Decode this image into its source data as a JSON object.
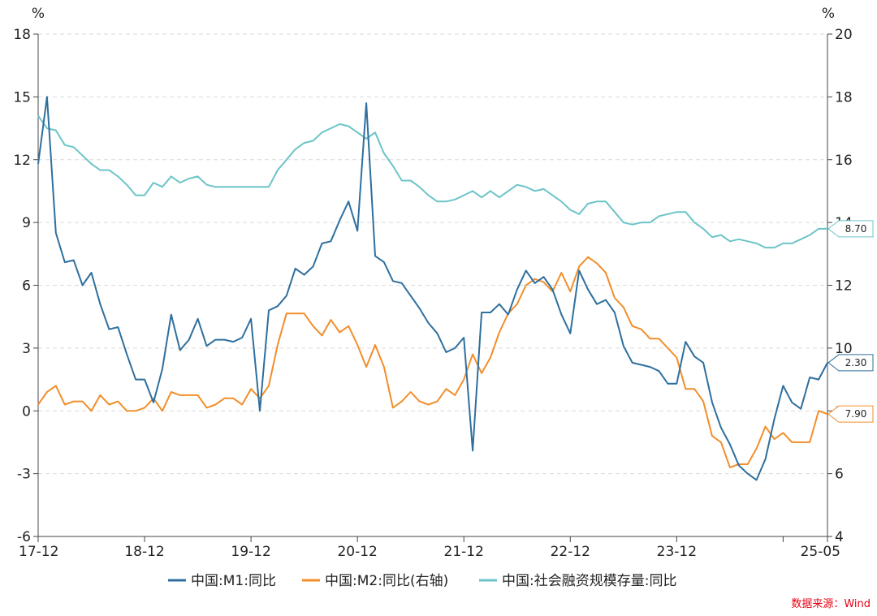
{
  "source": "数据来源：Wind",
  "chart_data": {
    "type": "line",
    "x_tick_labels": [
      "17-12",
      "18-12",
      "19-12",
      "20-12",
      "21-12",
      "22-12",
      "23-12",
      "25-05"
    ],
    "x_range": [
      "2017-12",
      "2025-05"
    ],
    "left_axis": {
      "unit": "%",
      "ylim": [
        -6,
        18
      ],
      "ticks": [
        -6,
        -3,
        0,
        3,
        6,
        9,
        12,
        15,
        18
      ]
    },
    "right_axis": {
      "unit": "%",
      "ylim": [
        4,
        20
      ],
      "ticks": [
        4,
        6,
        8,
        10,
        12,
        14,
        16,
        18,
        20
      ]
    },
    "grid": "horizontal dashed",
    "legend_position": "bottom",
    "series": [
      {
        "name": "中国:M1:同比",
        "axis": "left",
        "color": "#2e6f9e",
        "end_label": "2.30",
        "points": [
          [
            "2017-12",
            11.8
          ],
          [
            "2018-01",
            15.0
          ],
          [
            "2018-02",
            8.5
          ],
          [
            "2018-03",
            7.1
          ],
          [
            "2018-04",
            7.2
          ],
          [
            "2018-05",
            6.0
          ],
          [
            "2018-06",
            6.6
          ],
          [
            "2018-07",
            5.1
          ],
          [
            "2018-08",
            3.9
          ],
          [
            "2018-09",
            4.0
          ],
          [
            "2018-10",
            2.7
          ],
          [
            "2018-11",
            1.5
          ],
          [
            "2018-12",
            1.5
          ],
          [
            "2019-01",
            0.4
          ],
          [
            "2019-02",
            2.0
          ],
          [
            "2019-03",
            4.6
          ],
          [
            "2019-04",
            2.9
          ],
          [
            "2019-05",
            3.4
          ],
          [
            "2019-06",
            4.4
          ],
          [
            "2019-07",
            3.1
          ],
          [
            "2019-08",
            3.4
          ],
          [
            "2019-09",
            3.4
          ],
          [
            "2019-10",
            3.3
          ],
          [
            "2019-11",
            3.5
          ],
          [
            "2019-12",
            4.4
          ],
          [
            "2020-01",
            0.0
          ],
          [
            "2020-02",
            4.8
          ],
          [
            "2020-03",
            5.0
          ],
          [
            "2020-04",
            5.5
          ],
          [
            "2020-05",
            6.8
          ],
          [
            "2020-06",
            6.5
          ],
          [
            "2020-07",
            6.9
          ],
          [
            "2020-08",
            8.0
          ],
          [
            "2020-09",
            8.1
          ],
          [
            "2020-10",
            9.1
          ],
          [
            "2020-11",
            10.0
          ],
          [
            "2020-12",
            8.6
          ],
          [
            "2021-01",
            14.7
          ],
          [
            "2021-02",
            7.4
          ],
          [
            "2021-03",
            7.1
          ],
          [
            "2021-04",
            6.2
          ],
          [
            "2021-05",
            6.1
          ],
          [
            "2021-06",
            5.5
          ],
          [
            "2021-07",
            4.9
          ],
          [
            "2021-08",
            4.2
          ],
          [
            "2021-09",
            3.7
          ],
          [
            "2021-10",
            2.8
          ],
          [
            "2021-11",
            3.0
          ],
          [
            "2021-12",
            3.5
          ],
          [
            "2022-01",
            -1.9
          ],
          [
            "2022-02",
            4.7
          ],
          [
            "2022-03",
            4.7
          ],
          [
            "2022-04",
            5.1
          ],
          [
            "2022-05",
            4.6
          ],
          [
            "2022-06",
            5.8
          ],
          [
            "2022-07",
            6.7
          ],
          [
            "2022-08",
            6.1
          ],
          [
            "2022-09",
            6.4
          ],
          [
            "2022-10",
            5.8
          ],
          [
            "2022-11",
            4.6
          ],
          [
            "2022-12",
            3.7
          ],
          [
            "2023-01",
            6.7
          ],
          [
            "2023-02",
            5.8
          ],
          [
            "2023-03",
            5.1
          ],
          [
            "2023-04",
            5.3
          ],
          [
            "2023-05",
            4.7
          ],
          [
            "2023-06",
            3.1
          ],
          [
            "2023-07",
            2.3
          ],
          [
            "2023-08",
            2.2
          ],
          [
            "2023-09",
            2.1
          ],
          [
            "2023-10",
            1.9
          ],
          [
            "2023-11",
            1.3
          ],
          [
            "2023-12",
            1.3
          ],
          [
            "2024-01",
            3.3
          ],
          [
            "2024-02",
            2.6
          ],
          [
            "2024-03",
            2.3
          ],
          [
            "2024-04",
            0.4
          ],
          [
            "2024-05",
            -0.8
          ],
          [
            "2024-06",
            -1.6
          ],
          [
            "2024-07",
            -2.6
          ],
          [
            "2024-08",
            -3.0
          ],
          [
            "2024-09",
            -3.3
          ],
          [
            "2024-10",
            -2.3
          ],
          [
            "2024-11",
            -0.4
          ],
          [
            "2024-12",
            1.2
          ],
          [
            "2025-01",
            0.4
          ],
          [
            "2025-02",
            0.1
          ],
          [
            "2025-03",
            1.6
          ],
          [
            "2025-04",
            1.5
          ],
          [
            "2025-05",
            2.3
          ]
        ]
      },
      {
        "name": "中国:M2:同比(右轴)",
        "axis": "right",
        "color": "#f28e2b",
        "end_label": "7.90",
        "points": [
          [
            "2017-12",
            8.2
          ],
          [
            "2018-01",
            8.6
          ],
          [
            "2018-02",
            8.8
          ],
          [
            "2018-03",
            8.2
          ],
          [
            "2018-04",
            8.3
          ],
          [
            "2018-05",
            8.3
          ],
          [
            "2018-06",
            8.0
          ],
          [
            "2018-07",
            8.5
          ],
          [
            "2018-08",
            8.2
          ],
          [
            "2018-09",
            8.3
          ],
          [
            "2018-10",
            8.0
          ],
          [
            "2018-11",
            8.0
          ],
          [
            "2018-12",
            8.1
          ],
          [
            "2019-01",
            8.4
          ],
          [
            "2019-02",
            8.0
          ],
          [
            "2019-03",
            8.6
          ],
          [
            "2019-04",
            8.5
          ],
          [
            "2019-05",
            8.5
          ],
          [
            "2019-06",
            8.5
          ],
          [
            "2019-07",
            8.1
          ],
          [
            "2019-08",
            8.2
          ],
          [
            "2019-09",
            8.4
          ],
          [
            "2019-10",
            8.4
          ],
          [
            "2019-11",
            8.2
          ],
          [
            "2019-12",
            8.7
          ],
          [
            "2020-01",
            8.4
          ],
          [
            "2020-02",
            8.8
          ],
          [
            "2020-03",
            10.1
          ],
          [
            "2020-04",
            11.1
          ],
          [
            "2020-05",
            11.1
          ],
          [
            "2020-06",
            11.1
          ],
          [
            "2020-07",
            10.7
          ],
          [
            "2020-08",
            10.4
          ],
          [
            "2020-09",
            10.9
          ],
          [
            "2020-10",
            10.5
          ],
          [
            "2020-11",
            10.7
          ],
          [
            "2020-12",
            10.1
          ],
          [
            "2021-01",
            9.4
          ],
          [
            "2021-02",
            10.1
          ],
          [
            "2021-03",
            9.4
          ],
          [
            "2021-04",
            8.1
          ],
          [
            "2021-05",
            8.3
          ],
          [
            "2021-06",
            8.6
          ],
          [
            "2021-07",
            8.3
          ],
          [
            "2021-08",
            8.2
          ],
          [
            "2021-09",
            8.3
          ],
          [
            "2021-10",
            8.7
          ],
          [
            "2021-11",
            8.5
          ],
          [
            "2021-12",
            9.0
          ],
          [
            "2022-01",
            9.8
          ],
          [
            "2022-02",
            9.2
          ],
          [
            "2022-03",
            9.7
          ],
          [
            "2022-04",
            10.5
          ],
          [
            "2022-05",
            11.1
          ],
          [
            "2022-06",
            11.4
          ],
          [
            "2022-07",
            12.0
          ],
          [
            "2022-08",
            12.2
          ],
          [
            "2022-09",
            12.1
          ],
          [
            "2022-10",
            11.8
          ],
          [
            "2022-11",
            12.4
          ],
          [
            "2022-12",
            11.8
          ],
          [
            "2023-01",
            12.6
          ],
          [
            "2023-02",
            12.9
          ],
          [
            "2023-03",
            12.7
          ],
          [
            "2023-04",
            12.4
          ],
          [
            "2023-05",
            11.6
          ],
          [
            "2023-06",
            11.3
          ],
          [
            "2023-07",
            10.7
          ],
          [
            "2023-08",
            10.6
          ],
          [
            "2023-09",
            10.3
          ],
          [
            "2023-10",
            10.3
          ],
          [
            "2023-11",
            10.0
          ],
          [
            "2023-12",
            9.7
          ],
          [
            "2024-01",
            8.7
          ],
          [
            "2024-02",
            8.7
          ],
          [
            "2024-03",
            8.3
          ],
          [
            "2024-04",
            7.2
          ],
          [
            "2024-05",
            7.0
          ],
          [
            "2024-06",
            6.2
          ],
          [
            "2024-07",
            6.3
          ],
          [
            "2024-08",
            6.3
          ],
          [
            "2024-09",
            6.8
          ],
          [
            "2024-10",
            7.5
          ],
          [
            "2024-11",
            7.1
          ],
          [
            "2024-12",
            7.3
          ],
          [
            "2025-01",
            7.0
          ],
          [
            "2025-02",
            7.0
          ],
          [
            "2025-03",
            7.0
          ],
          [
            "2025-04",
            8.0
          ],
          [
            "2025-05",
            7.9
          ]
        ]
      },
      {
        "name": "中国:社会融资规模存量:同比",
        "axis": "left",
        "color": "#6cc4c8",
        "end_label": "8.70",
        "points": [
          [
            "2017-12",
            14.1
          ],
          [
            "2018-01",
            13.5
          ],
          [
            "2018-02",
            13.4
          ],
          [
            "2018-03",
            12.7
          ],
          [
            "2018-04",
            12.6
          ],
          [
            "2018-05",
            12.2
          ],
          [
            "2018-06",
            11.8
          ],
          [
            "2018-07",
            11.5
          ],
          [
            "2018-08",
            11.5
          ],
          [
            "2018-09",
            11.2
          ],
          [
            "2018-10",
            10.8
          ],
          [
            "2018-11",
            10.3
          ],
          [
            "2018-12",
            10.3
          ],
          [
            "2019-01",
            10.9
          ],
          [
            "2019-02",
            10.7
          ],
          [
            "2019-03",
            11.2
          ],
          [
            "2019-04",
            10.9
          ],
          [
            "2019-05",
            11.1
          ],
          [
            "2019-06",
            11.2
          ],
          [
            "2019-07",
            10.8
          ],
          [
            "2019-08",
            10.7
          ],
          [
            "2019-09",
            10.7
          ],
          [
            "2019-10",
            10.7
          ],
          [
            "2019-11",
            10.7
          ],
          [
            "2019-12",
            10.7
          ],
          [
            "2020-01",
            10.7
          ],
          [
            "2020-02",
            10.7
          ],
          [
            "2020-03",
            11.5
          ],
          [
            "2020-04",
            12.0
          ],
          [
            "2020-05",
            12.5
          ],
          [
            "2020-06",
            12.8
          ],
          [
            "2020-07",
            12.9
          ],
          [
            "2020-08",
            13.3
          ],
          [
            "2020-09",
            13.5
          ],
          [
            "2020-10",
            13.7
          ],
          [
            "2020-11",
            13.6
          ],
          [
            "2020-12",
            13.3
          ],
          [
            "2021-01",
            13.0
          ],
          [
            "2021-02",
            13.3
          ],
          [
            "2021-03",
            12.3
          ],
          [
            "2021-04",
            11.7
          ],
          [
            "2021-05",
            11.0
          ],
          [
            "2021-06",
            11.0
          ],
          [
            "2021-07",
            10.7
          ],
          [
            "2021-08",
            10.3
          ],
          [
            "2021-09",
            10.0
          ],
          [
            "2021-10",
            10.0
          ],
          [
            "2021-11",
            10.1
          ],
          [
            "2021-12",
            10.3
          ],
          [
            "2022-01",
            10.5
          ],
          [
            "2022-02",
            10.2
          ],
          [
            "2022-03",
            10.5
          ],
          [
            "2022-04",
            10.2
          ],
          [
            "2022-05",
            10.5
          ],
          [
            "2022-06",
            10.8
          ],
          [
            "2022-07",
            10.7
          ],
          [
            "2022-08",
            10.5
          ],
          [
            "2022-09",
            10.6
          ],
          [
            "2022-10",
            10.3
          ],
          [
            "2022-11",
            10.0
          ],
          [
            "2022-12",
            9.6
          ],
          [
            "2023-01",
            9.4
          ],
          [
            "2023-02",
            9.9
          ],
          [
            "2023-03",
            10.0
          ],
          [
            "2023-04",
            10.0
          ],
          [
            "2023-05",
            9.5
          ],
          [
            "2023-06",
            9.0
          ],
          [
            "2023-07",
            8.9
          ],
          [
            "2023-08",
            9.0
          ],
          [
            "2023-09",
            9.0
          ],
          [
            "2023-10",
            9.3
          ],
          [
            "2023-11",
            9.4
          ],
          [
            "2023-12",
            9.5
          ],
          [
            "2024-01",
            9.5
          ],
          [
            "2024-02",
            9.0
          ],
          [
            "2024-03",
            8.7
          ],
          [
            "2024-04",
            8.3
          ],
          [
            "2024-05",
            8.4
          ],
          [
            "2024-06",
            8.1
          ],
          [
            "2024-07",
            8.2
          ],
          [
            "2024-08",
            8.1
          ],
          [
            "2024-09",
            8.0
          ],
          [
            "2024-10",
            7.8
          ],
          [
            "2024-11",
            7.8
          ],
          [
            "2024-12",
            8.0
          ],
          [
            "2025-01",
            8.0
          ],
          [
            "2025-02",
            8.2
          ],
          [
            "2025-03",
            8.4
          ],
          [
            "2025-04",
            8.7
          ],
          [
            "2025-05",
            8.7
          ]
        ]
      }
    ]
  }
}
